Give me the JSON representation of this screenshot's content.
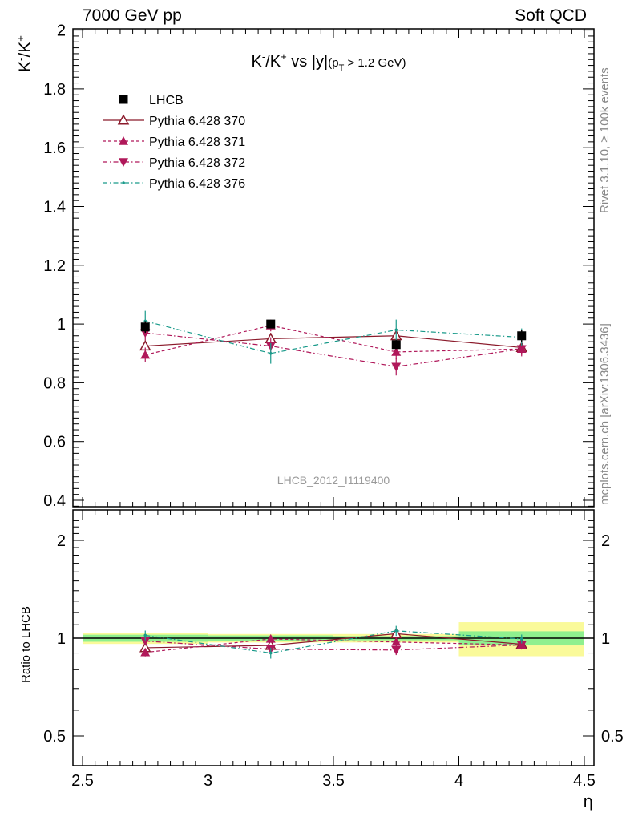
{
  "header": {
    "left": "7000 GeV pp",
    "right": "Soft QCD"
  },
  "side_labels": {
    "rivet": "Rivet 3.1.10, ≥ 100k events",
    "mcplots": "mcplots.cern.ch [arXiv:1306.3436]"
  },
  "chart_data": {
    "type": "scatter",
    "title": "K⁻/K⁺ vs |y|(pₜ > 1.2 GeV)",
    "title_parts": {
      "main": "K",
      "sup1": "-",
      "mid": "/K",
      "sup2": "+",
      "rest": " vs |y|",
      "paren": "(p",
      "sub": "T",
      "tail": " > 1.2 GeV)"
    },
    "ylabel_parts": {
      "a": "K",
      "sup1": "-",
      "b": "/K",
      "sup2": "+"
    },
    "xlabel": "η",
    "ratio_ylabel": "Ratio to LHCB",
    "watermark": "LHCB_2012_I1119400",
    "xlim": [
      2.5,
      4.5
    ],
    "ylim": [
      0.38,
      2.0
    ],
    "ratio_ylim": [
      0.4,
      2.4
    ],
    "x_ticks": [
      "2.5",
      "3",
      "3.5",
      "4",
      "4.5"
    ],
    "x_tick_values": [
      2.5,
      3.0,
      3.5,
      4.0,
      4.5
    ],
    "y_ticks": [
      "0.4",
      "0.6",
      "0.8",
      "1",
      "1.2",
      "1.4",
      "1.6",
      "1.8",
      "2"
    ],
    "y_tick_values": [
      0.4,
      0.6,
      0.8,
      1.0,
      1.2,
      1.4,
      1.6,
      1.8,
      2.0
    ],
    "ratio_y_ticks": [
      "0.5",
      "1",
      "2"
    ],
    "ratio_y_tick_values": [
      0.5,
      1.0,
      2.0
    ],
    "x": [
      2.75,
      3.25,
      3.75,
      4.25
    ],
    "bin_edges": [
      2.5,
      3.0,
      3.5,
      4.0,
      4.5
    ],
    "data": {
      "name": "LHCB",
      "values": [
        0.99,
        1.0,
        0.93,
        0.96
      ],
      "errors": [
        0.02,
        0.01,
        0.015,
        0.02
      ],
      "ratio_band_inner": [
        0.025,
        0.02,
        0.015,
        0.05
      ],
      "ratio_band_outer": [
        0.04,
        0.03,
        0.03,
        0.12
      ]
    },
    "series": [
      {
        "name": "Pythia 6.428 370",
        "values": [
          0.925,
          0.95,
          0.96,
          0.92
        ],
        "errors": [
          0.02,
          0.02,
          0.025,
          0.02
        ],
        "color": "#8b1a2b",
        "marker": "triangle-up-open",
        "dash": ""
      },
      {
        "name": "Pythia 6.428 371",
        "values": [
          0.895,
          0.995,
          0.905,
          0.915
        ],
        "errors": [
          0.025,
          0.02,
          0.025,
          0.02
        ],
        "color": "#b0185a",
        "marker": "triangle-up-filled",
        "dash": "4,3"
      },
      {
        "name": "Pythia 6.428 372",
        "values": [
          0.97,
          0.925,
          0.855,
          0.915
        ],
        "errors": [
          0.025,
          0.03,
          0.03,
          0.025
        ],
        "color": "#b0185a",
        "marker": "triangle-down-filled",
        "dash": "6,3,1.5,3"
      },
      {
        "name": "Pythia 6.428 376",
        "values": [
          1.01,
          0.9,
          0.98,
          0.955
        ],
        "errors": [
          0.035,
          0.035,
          0.035,
          0.03
        ],
        "color": "#199a8a",
        "marker": "dot",
        "dash": "6,3,1.5,3"
      }
    ],
    "colors": {
      "band_inner": "#8ff08f",
      "band_outer": "#fafa9a",
      "data": "#000000"
    }
  }
}
